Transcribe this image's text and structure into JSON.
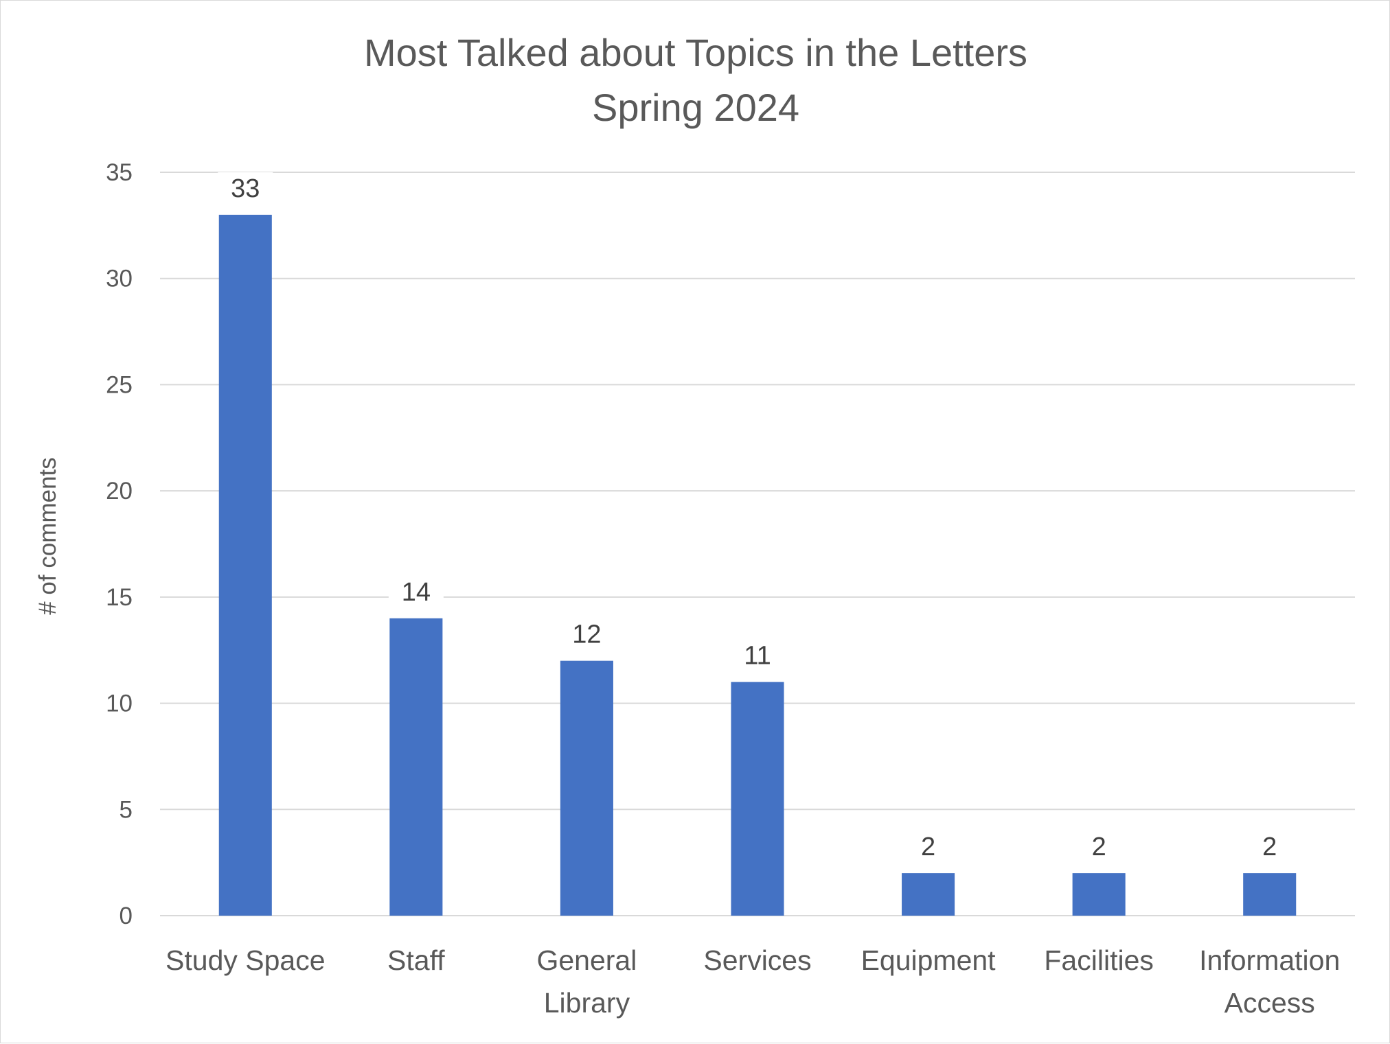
{
  "chart_data": {
    "type": "bar",
    "title": "Most Talked about Topics in the Letters",
    "subtitle": "Spring 2024",
    "ylabel": "# of comments",
    "xlabel": "",
    "categories": [
      [
        "Study Space"
      ],
      [
        "Staff"
      ],
      [
        "General",
        "Library"
      ],
      [
        "Services"
      ],
      [
        "Equipment"
      ],
      [
        "Facilities"
      ],
      [
        "Information",
        "Access"
      ]
    ],
    "values": [
      33,
      14,
      12,
      11,
      2,
      2,
      2
    ],
    "ylim": [
      0,
      35
    ],
    "yticks": [
      0,
      5,
      10,
      15,
      20,
      25,
      30,
      35
    ],
    "bar_color": "#4472c4",
    "grid": true,
    "legend": "none",
    "data_labels": true
  }
}
